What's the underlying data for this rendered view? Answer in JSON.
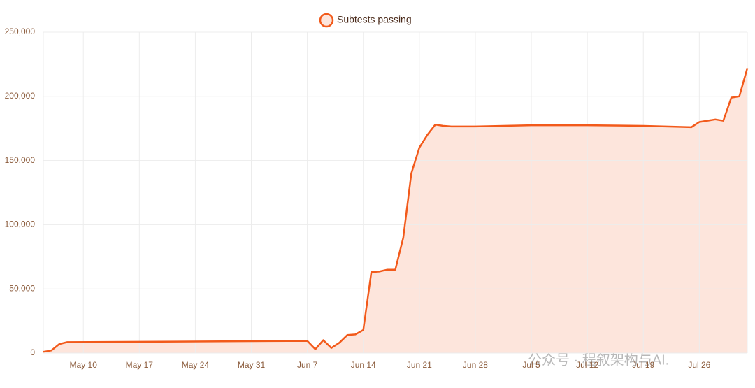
{
  "chart_data": {
    "type": "line",
    "legend_position": "top",
    "grid": true,
    "x": [
      "May 5",
      "May 6",
      "May 7",
      "May 8",
      "Jun 7",
      "Jun 8",
      "Jun 9",
      "Jun 10",
      "Jun 11",
      "Jun 12",
      "Jun 13",
      "Jun 14",
      "Jun 15",
      "Jun 16",
      "Jun 17",
      "Jun 18",
      "Jun 19",
      "Jun 20",
      "Jun 21",
      "Jun 22",
      "Jun 23",
      "Jun 24",
      "Jun 25",
      "Jun 28",
      "Jul 5",
      "Jul 12",
      "Jul 19",
      "Jul 25",
      "Jul 26",
      "Jul 28",
      "Jul 29",
      "Jul 30",
      "Jul 31",
      "Aug 1"
    ],
    "series": [
      {
        "name": "Subtests passing",
        "color": "#f25a1b",
        "fill": "#fde5dc",
        "values": [
          1000,
          2000,
          7000,
          8500,
          9500,
          3000,
          10000,
          4000,
          8000,
          14000,
          14500,
          18000,
          63000,
          63500,
          65000,
          65000,
          90000,
          140000,
          160000,
          170000,
          178000,
          177000,
          176500,
          176500,
          177500,
          177500,
          177000,
          176000,
          180000,
          182000,
          181000,
          199000,
          200000,
          222000
        ]
      }
    ],
    "xlim": [
      "May 5",
      "Aug 1"
    ],
    "xticks": [
      "May 10",
      "May 17",
      "May 24",
      "May 31",
      "Jun 7",
      "Jun 14",
      "Jun 21",
      "Jun 28",
      "Jul 5",
      "Jul 12",
      "Jul 19",
      "Jul 26"
    ],
    "ylim": [
      0,
      250000
    ],
    "yticks": [
      0,
      {
        "value": 50000,
        "label": "50,000"
      },
      {
        "value": 100000,
        "label": "100,000"
      },
      {
        "value": 150000,
        "label": "150,000"
      },
      {
        "value": 200000,
        "label": "200,000"
      },
      {
        "value": 250000,
        "label": "250,000"
      }
    ]
  },
  "watermark": "公众号 · 程叙架构与AI."
}
